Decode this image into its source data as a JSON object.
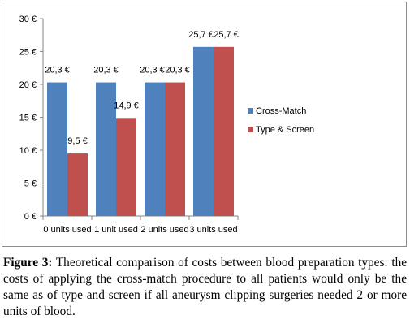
{
  "chart_data": {
    "type": "bar",
    "categories": [
      "0 units used",
      "1 unit used",
      "2 units used",
      "3 units used"
    ],
    "series": [
      {
        "name": "Cross-Match",
        "values": [
          20.3,
          20.3,
          20.3,
          25.7
        ],
        "labels": [
          "20,3 €",
          "20,3 €",
          "20,3 €",
          "25,7 €"
        ],
        "color": "#4f81bd"
      },
      {
        "name": "Type & Screen",
        "values": [
          9.5,
          14.9,
          20.3,
          25.7
        ],
        "labels": [
          "9,5 €",
          "14,9 €",
          "20,3 €",
          "25,7 €"
        ],
        "color": "#c0504d"
      }
    ],
    "ylim": [
      0,
      30
    ],
    "yticks": [
      0,
      5,
      10,
      15,
      20,
      25,
      30
    ],
    "ytick_labels": [
      "0 €",
      "5 €",
      "10 €",
      "15 €",
      "20 €",
      "25 €",
      "30 €"
    ],
    "legend_position": "right",
    "grid": false
  },
  "caption": {
    "label": "Figure 3:",
    "text": "Theoretical comparison of costs between blood preparation types: the costs of applying the cross-match procedure to all patients would only be the same as of type and screen if all aneurysm clipping surgeries needed 2 or more units of blood."
  }
}
